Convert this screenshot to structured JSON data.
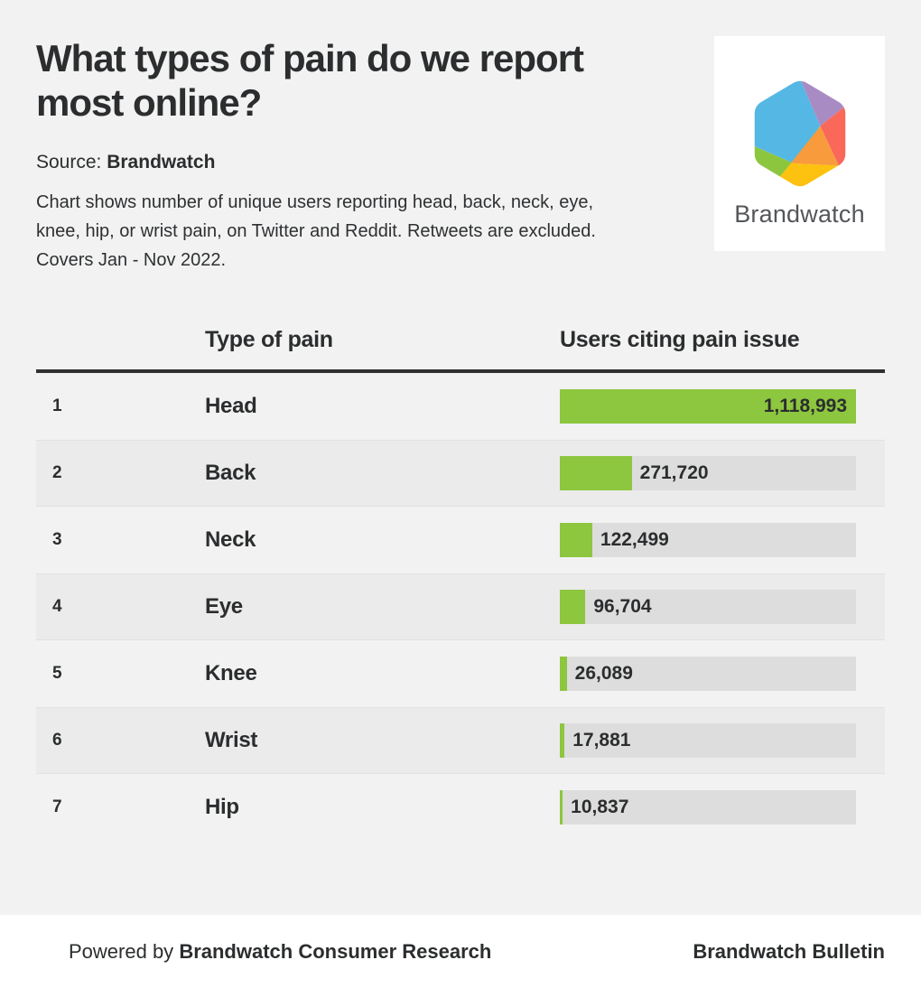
{
  "header": {
    "title": "What types of pain do we report\nmost online?",
    "source_label": "Source:",
    "source_value": "Brandwatch",
    "description": "Chart shows number of unique users reporting head, back, neck, eye,\nknee, hip, or wrist pain, on Twitter and Reddit. Retweets are excluded.\nCovers Jan - Nov 2022.",
    "logo_text": "Brandwatch"
  },
  "table": {
    "columns": [
      "Type of pain",
      "Users citing pain issue"
    ]
  },
  "chart_data": {
    "type": "bar",
    "orientation": "horizontal",
    "title": "What types of pain do we report most online?",
    "xlabel": "Users citing pain issue",
    "ylabel": "Type of pain",
    "ranks": [
      1,
      2,
      3,
      4,
      5,
      6,
      7
    ],
    "categories": [
      "Head",
      "Back",
      "Neck",
      "Eye",
      "Knee",
      "Wrist",
      "Hip"
    ],
    "values": [
      1118993,
      271720,
      122499,
      96704,
      26089,
      17881,
      10837
    ],
    "value_labels": [
      "1,118,993",
      "271,720",
      "122,499",
      "96,704",
      "26,089",
      "17,881",
      "10,837"
    ],
    "max_value": 1118993,
    "bar_color": "#8dc63f",
    "track_color": "#dddddd",
    "legend": "none",
    "grid": "off"
  },
  "footer": {
    "powered_by_label": "Powered by",
    "powered_by_brand": "Brandwatch Consumer Research",
    "bulletin": "Brandwatch Bulletin"
  },
  "colors": {
    "page_bg": "#f2f2f2",
    "alt_row_bg": "#ebebeb",
    "accent_green": "#8dc63f",
    "divider_dark": "#303030",
    "text_dark": "#2b2d2e",
    "logo_blue": "#55b7e4",
    "logo_purple": "#a98bc4",
    "logo_red": "#fa685a",
    "logo_orange": "#f89b3c",
    "logo_yellow": "#fcc20f",
    "logo_green": "#8cc63f"
  }
}
